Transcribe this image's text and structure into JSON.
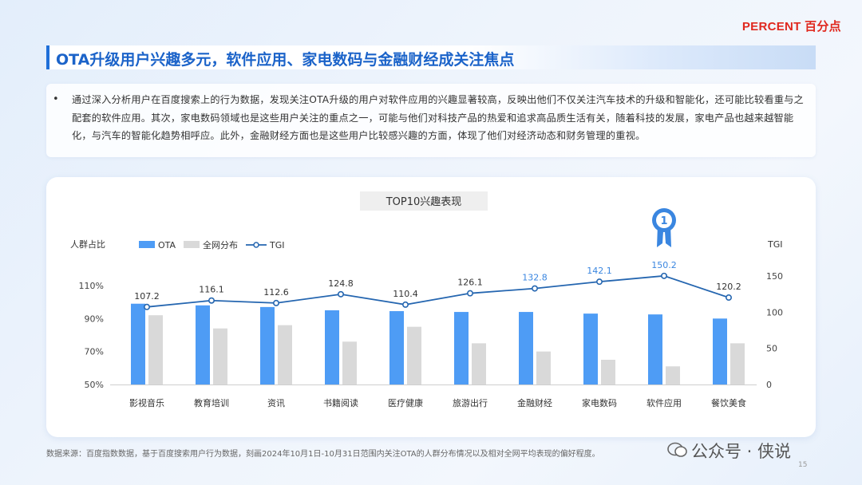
{
  "brand": {
    "logo": "PERCENT 百分点"
  },
  "title": "OTA升级用户兴趣多元，软件应用、家电数码与金融财经成关注焦点",
  "description": {
    "bullet": "•",
    "text": "通过深入分析用户在百度搜索上的行为数据，发现关注OTA升级的用户对软件应用的兴趣显著较高，反映出他们不仅关注汽车技术的升级和智能化，还可能比较看重与之配套的软件应用。其次，家电数码领域也是这些用户关注的重点之一，可能与他们对科技产品的热爱和追求高品质生活有关，随着科技的发展，家电产品也越来越智能化，与汽车的智能化趋势相呼应。此外，金融财经方面也是这些用户比较感兴趣的方面，体现了他们对经济动态和财务管理的重视。"
  },
  "chart_data": {
    "type": "bar",
    "title": "TOP10兴趣表现",
    "ylabel_left": "人群占比",
    "ylabel_right": "TGI",
    "categories": [
      "影视音乐",
      "教育培训",
      "资讯",
      "书籍阅读",
      "医疗健康",
      "旅游出行",
      "金融财经",
      "家电数码",
      "软件应用",
      "餐饮美食"
    ],
    "series": [
      {
        "name": "OTA",
        "type": "bar",
        "axis": "left",
        "color": "#4e9cf5",
        "values": [
          99,
          98,
          97,
          95,
          94.5,
          94,
          94,
          93,
          92.5,
          90
        ]
      },
      {
        "name": "全网分布",
        "type": "bar",
        "axis": "left",
        "color": "#d9d9d9",
        "values": [
          92,
          84,
          86,
          76,
          85,
          75,
          70,
          65,
          61,
          75
        ]
      },
      {
        "name": "TGI",
        "type": "line",
        "axis": "right",
        "color": "#2566b0",
        "values": [
          107.2,
          116.1,
          112.6,
          124.8,
          110.4,
          126.1,
          132.8,
          142.1,
          150.2,
          120.2
        ]
      }
    ],
    "y_left": {
      "ticks": [
        "110%",
        "90%",
        "70%",
        "50%"
      ],
      "tick_values": [
        110,
        90,
        70,
        50
      ],
      "range": [
        50,
        110
      ]
    },
    "y_right": {
      "ticks": [
        "150",
        "100",
        "50",
        "0"
      ],
      "tick_values": [
        150,
        100,
        50,
        0
      ],
      "range": [
        0,
        150
      ]
    },
    "highlight_labels": [
      6,
      7,
      8
    ],
    "highlight_color": "#3a86e0",
    "badge": {
      "index": 8,
      "text": "1"
    },
    "legend_position": "top-left",
    "grid": false
  },
  "footer": {
    "source": "数据来源：百度指数数据，基于百度搜索用户行为数据，刻画2024年10月1日-10月31日范围内关注OTA的人群分布情况以及相对全网平均表现的偏好程度。",
    "watermark": "公众号 · 侠说",
    "page": "15"
  }
}
